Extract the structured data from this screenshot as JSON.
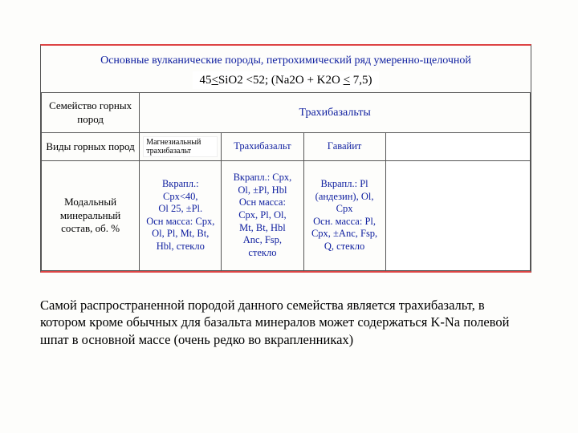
{
  "background": "#fdfdfb",
  "accent_border": "#d44",
  "title_color": "#1020a0",
  "table": {
    "title": "Основные вулканические породы, петрохимический ряд умеренно-щелочной",
    "formula_html": "45<span class='u'>&lt;</span>SiO2 &lt;52; (Na2O + K2O <span class='u'>&lt;</span> 7,5)",
    "row1_label": "Семейство горных пород",
    "row1_value": "Трахибазальты",
    "row2_label": "Виды горных пород",
    "annotation": "Магнезиальный трахибазальт",
    "col2": "Трахибазальт",
    "col3": "Гавайит",
    "row3_label": "Модальный минеральный состав, об. %",
    "cell_r3_c1": "Вкрапл.:\nCpx<40,\nOl 25, ±Pl.\nОсн масса: Cpx,\nOl, Pl, Mt, Bt,\nHbl, стекло",
    "cell_r3_c2": "Вкрапл.: Cpx,\nOl, ±Pl, Hbl\nОсн масса:\nCpx, Pl, Ol,\nMt, Bt, Hbl\nAnc, Fsp,\nстекло",
    "cell_r3_c3": "Вкрапл.: Pl\n(андезин), Ol,\nCpx\nОсн. масса: Pl,\nCpx, ±Anc, Fsp,\nQ, стекло"
  },
  "paragraph": "Самой распространенной породой данного семейства является трахибазальт, в котором кроме обычных для базальта минералов может содержаться K-Na полевой шпат в основной массе (очень редко во вкрапленниках)"
}
